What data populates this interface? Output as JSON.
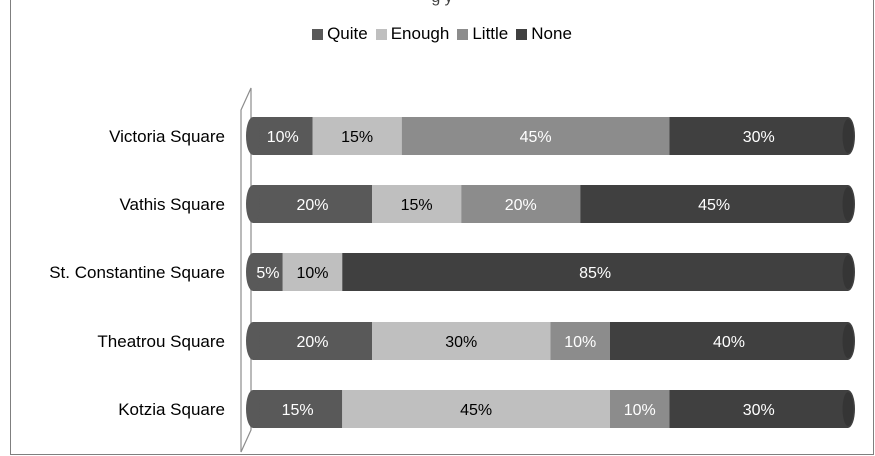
{
  "chart_data": {
    "type": "bar",
    "orientation": "horizontal",
    "stacked": true,
    "percent": true,
    "title": "",
    "title_peek": "g                    y",
    "categories": [
      "Victoria Square",
      "Vathis Square",
      "St. Constantine Square",
      "Theatrou Square",
      "Kotzia Square"
    ],
    "series": [
      {
        "name": "Quite",
        "color": "#595959",
        "values": [
          10,
          20,
          5,
          20,
          15
        ]
      },
      {
        "name": "Enough",
        "color": "#bfbfbf",
        "values": [
          15,
          15,
          10,
          30,
          45
        ]
      },
      {
        "name": "Little",
        "color": "#8c8c8c",
        "values": [
          45,
          20,
          0,
          10,
          10
        ]
      },
      {
        "name": "None",
        "color": "#404040",
        "values": [
          30,
          45,
          85,
          40,
          30
        ]
      }
    ],
    "data_labels": [
      [
        "10%",
        "15%",
        "45%",
        "30%"
      ],
      [
        "20%",
        "15%",
        "20%",
        "45%"
      ],
      [
        "5%",
        "10%",
        "",
        "85%"
      ],
      [
        "20%",
        "30%",
        "10%",
        "40%"
      ],
      [
        "15%",
        "45%",
        "10%",
        "30%"
      ]
    ],
    "xlim": [
      0,
      100
    ],
    "legend_position": "top",
    "grid": false
  }
}
